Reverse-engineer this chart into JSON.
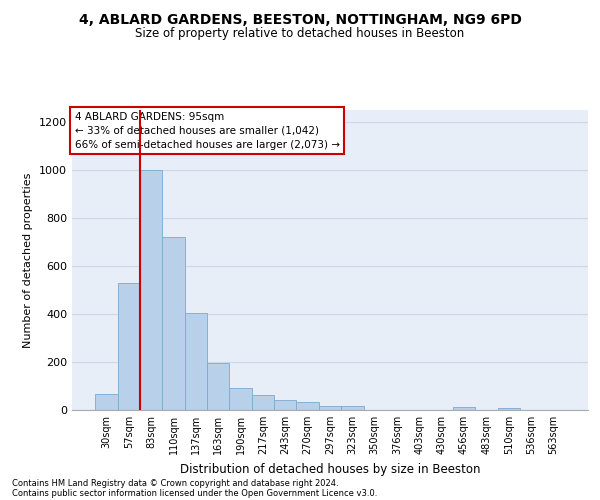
{
  "title1": "4, ABLARD GARDENS, BEESTON, NOTTINGHAM, NG9 6PD",
  "title2": "Size of property relative to detached houses in Beeston",
  "xlabel": "Distribution of detached houses by size in Beeston",
  "ylabel": "Number of detached properties",
  "categories": [
    "30sqm",
    "57sqm",
    "83sqm",
    "110sqm",
    "137sqm",
    "163sqm",
    "190sqm",
    "217sqm",
    "243sqm",
    "270sqm",
    "297sqm",
    "323sqm",
    "350sqm",
    "376sqm",
    "403sqm",
    "430sqm",
    "456sqm",
    "483sqm",
    "510sqm",
    "536sqm",
    "563sqm"
  ],
  "values": [
    68,
    528,
    1002,
    720,
    405,
    197,
    90,
    62,
    40,
    32,
    18,
    18,
    0,
    0,
    0,
    0,
    12,
    0,
    10,
    0,
    0
  ],
  "bar_color": "#b8d0ea",
  "bar_edge_color": "#7aaad0",
  "grid_color": "#d0d8e8",
  "bg_color": "#e8eef8",
  "annotation_box_text": "4 ABLARD GARDENS: 95sqm\n← 33% of detached houses are smaller (1,042)\n66% of semi-detached houses are larger (2,073) →",
  "annotation_box_color": "#ffffff",
  "annotation_box_edge_color": "#cc0000",
  "property_line_color": "#cc0000",
  "property_line_x": 1.5,
  "ylim": [
    0,
    1250
  ],
  "yticks": [
    0,
    200,
    400,
    600,
    800,
    1000,
    1200
  ],
  "footnote1": "Contains HM Land Registry data © Crown copyright and database right 2024.",
  "footnote2": "Contains public sector information licensed under the Open Government Licence v3.0."
}
